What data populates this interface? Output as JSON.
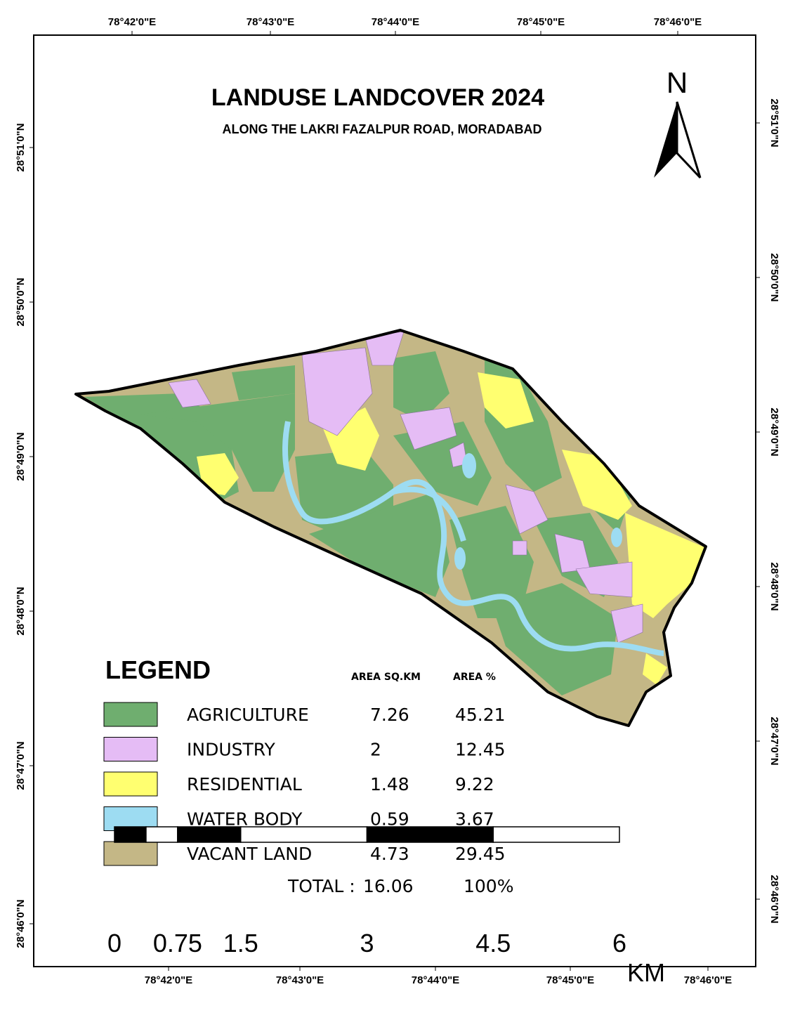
{
  "title": "LANDUSE LANDCOVER 2024",
  "subtitle": "ALONG THE LAKRI FAZALPUR ROAD, MORADABAD",
  "north": "N",
  "grid_labels": {
    "top": [
      "78°42'0\"E",
      "78°43'0\"E",
      "78°44'0\"E",
      "78°45'0\"E",
      "78°46'0\"E"
    ],
    "bottom": [
      "78°42'0\"E",
      "78°43'0\"E",
      "78°44'0\"E",
      "78°45'0\"E",
      "78°46'0\"E"
    ],
    "left": [
      "28°51'0\"N",
      "28°50'0\"N",
      "28°49'0\"N",
      "28°48'0\"N",
      "28°47'0\"N",
      "28°46'0\"N"
    ],
    "right": [
      "28°51'0\"N",
      "28°50'0\"N",
      "28°49'0\"N",
      "28°48'0\"N",
      "28°47'0\"N",
      "28°46'0\"N"
    ]
  },
  "legend": {
    "title": "LEGEND",
    "header_area": "AREA SQ.KM",
    "header_percent": "AREA %",
    "rows": [
      {
        "name": "AGRICULTURE",
        "color": "#6fae6f",
        "area": 7.26,
        "percent": 45.21
      },
      {
        "name": "INDUSTRY",
        "color": "#e5bcf5",
        "area": 2,
        "percent": 12.45
      },
      {
        "name": "RESIDENTIAL",
        "color": "#ffff70",
        "area": 1.48,
        "percent": 9.22
      },
      {
        "name": "WATER BODY",
        "color": "#9ddcf2",
        "area": 0.59,
        "percent": 3.67
      },
      {
        "name": "VACANT LAND",
        "color": "#c4b786",
        "area": 4.73,
        "percent": 29.45
      }
    ],
    "total_label": "TOTAL :",
    "total_area": 16.06,
    "total_percent": "100%"
  },
  "scale": {
    "ticks": [
      0,
      0.75,
      1.5,
      3,
      4.5,
      6
    ],
    "unit": "KM"
  }
}
